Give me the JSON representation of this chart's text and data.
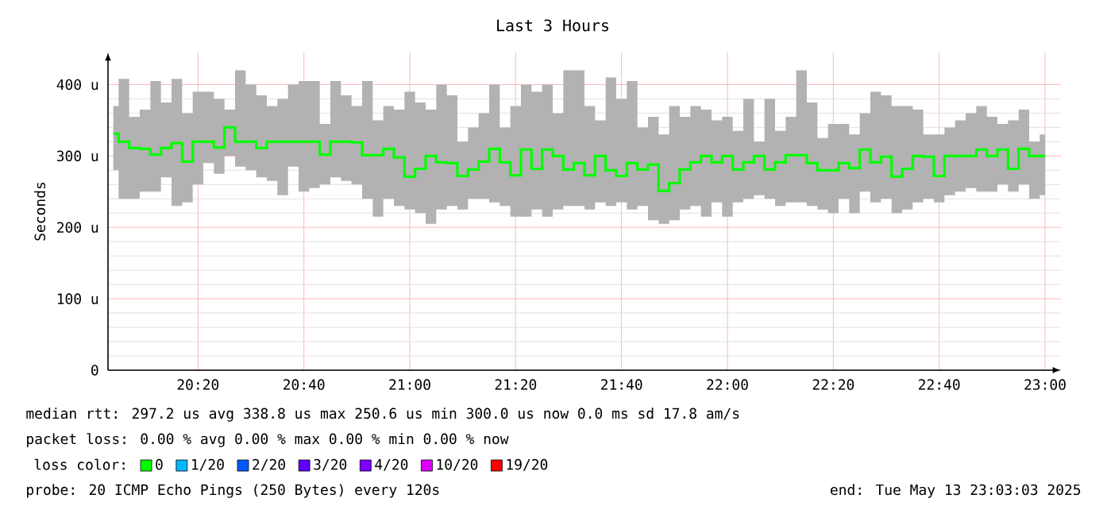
{
  "chart_data": {
    "type": "step",
    "title": "Last 3 Hours",
    "ylabel": "Seconds",
    "x": [
      20.0667,
      20.1,
      20.1333,
      20.1667,
      20.2,
      20.2333,
      20.2667,
      20.3,
      20.3333,
      20.3667,
      20.4,
      20.4333,
      20.4667,
      20.5,
      20.5333,
      20.5667,
      20.6,
      20.6333,
      20.6667,
      20.7,
      20.7333,
      20.7667,
      20.8,
      20.8333,
      20.8667,
      20.9,
      20.9333,
      20.9667,
      21.0,
      21.0333,
      21.0667,
      21.1,
      21.1333,
      21.1667,
      21.2,
      21.2333,
      21.2667,
      21.3,
      21.3333,
      21.3667,
      21.4,
      21.4333,
      21.4667,
      21.5,
      21.5333,
      21.5667,
      21.6,
      21.6333,
      21.6667,
      21.7,
      21.7333,
      21.7667,
      21.8,
      21.8333,
      21.8667,
      21.9,
      21.9333,
      21.9667,
      22.0,
      22.0333,
      22.0667,
      22.1,
      22.1333,
      22.1667,
      22.2,
      22.2333,
      22.2667,
      22.3,
      22.3333,
      22.3667,
      22.4,
      22.4333,
      22.4667,
      22.5,
      22.5333,
      22.5667,
      22.6,
      22.6333,
      22.6667,
      22.7,
      22.7333,
      22.7667,
      22.8,
      22.8333,
      22.8667,
      22.9,
      22.9333,
      22.9667,
      23.0
    ],
    "series": [
      {
        "name": "0",
        "color": "#00ff00",
        "values": [
          331,
          320,
          311,
          310,
          302,
          311,
          318,
          292,
          320,
          320,
          312,
          340,
          320,
          320,
          311,
          320,
          320,
          320,
          320,
          320,
          302,
          320,
          320,
          319,
          301,
          301,
          310,
          298,
          271,
          282,
          300,
          291,
          290,
          272,
          281,
          292,
          310,
          291,
          273,
          309,
          282,
          309,
          300,
          281,
          290,
          273,
          300,
          280,
          272,
          290,
          281,
          288,
          251,
          262,
          281,
          291,
          300,
          291,
          300,
          281,
          291,
          300,
          281,
          291,
          301,
          301,
          290,
          280,
          280,
          290,
          283,
          309,
          291,
          299,
          271,
          282,
          300,
          299,
          272,
          300,
          300,
          300,
          309,
          300,
          309,
          282,
          310,
          300,
          300
        ],
        "upper": [
          370,
          408,
          355,
          365,
          405,
          375,
          408,
          360,
          390,
          390,
          380,
          365,
          420,
          400,
          385,
          370,
          380,
          400,
          405,
          405,
          345,
          405,
          385,
          370,
          405,
          350,
          370,
          365,
          390,
          375,
          365,
          400,
          385,
          320,
          340,
          360,
          400,
          340,
          370,
          400,
          390,
          400,
          360,
          420,
          420,
          370,
          350,
          410,
          380,
          405,
          340,
          355,
          330,
          370,
          355,
          370,
          365,
          350,
          355,
          335,
          380,
          320,
          380,
          335,
          355,
          420,
          375,
          325,
          345,
          345,
          330,
          360,
          390,
          385,
          370,
          370,
          365,
          330,
          330,
          340,
          350,
          360,
          370,
          355,
          345,
          350,
          365,
          320,
          330
        ],
        "lower": [
          280,
          240,
          240,
          250,
          250,
          270,
          230,
          235,
          260,
          290,
          275,
          300,
          285,
          280,
          270,
          265,
          245,
          285,
          250,
          255,
          260,
          270,
          265,
          260,
          240,
          215,
          240,
          230,
          225,
          220,
          205,
          225,
          230,
          225,
          240,
          240,
          235,
          230,
          215,
          215,
          225,
          215,
          225,
          230,
          230,
          225,
          235,
          230,
          235,
          225,
          230,
          210,
          205,
          210,
          225,
          230,
          215,
          235,
          215,
          235,
          240,
          245,
          240,
          230,
          235,
          235,
          230,
          225,
          220,
          240,
          220,
          250,
          235,
          240,
          220,
          225,
          235,
          240,
          235,
          245,
          250,
          255,
          250,
          250,
          260,
          250,
          260,
          240,
          245
        ]
      },
      {
        "name": "1/20",
        "color": "#00b8ff",
        "values": [
          null,
          null,
          null,
          null,
          null,
          null,
          null,
          null,
          null,
          null,
          null,
          null,
          null,
          null,
          null,
          null,
          null,
          null,
          null,
          null,
          null,
          null,
          null,
          null,
          null,
          null,
          null,
          null,
          null,
          null,
          null,
          null,
          null,
          null,
          null,
          null,
          null,
          null,
          null,
          null,
          null,
          null,
          null,
          null,
          null,
          null,
          null,
          null,
          null,
          null,
          null,
          null,
          null,
          null,
          null,
          null,
          null,
          null,
          null,
          null,
          null,
          null,
          null,
          null,
          null,
          null,
          null,
          null,
          null,
          null,
          null,
          null,
          null,
          null,
          null,
          null,
          null,
          null,
          null,
          null,
          null,
          null,
          null,
          null,
          null,
          null,
          null,
          null,
          null
        ]
      },
      {
        "name": "2/20",
        "color": "#0059ff",
        "values": [
          null,
          null,
          null,
          null,
          null,
          null,
          null,
          null,
          null,
          null,
          null,
          null,
          null,
          null,
          null,
          null,
          null,
          null,
          null,
          null,
          null,
          null,
          null,
          null,
          null,
          null,
          null,
          null,
          null,
          null,
          null,
          null,
          null,
          null,
          null,
          null,
          null,
          null,
          null,
          null,
          null,
          null,
          null,
          null,
          null,
          null,
          null,
          null,
          null,
          null,
          null,
          null,
          null,
          null,
          null,
          null,
          null,
          null,
          null,
          null,
          null,
          null,
          null,
          null,
          null,
          null,
          null,
          null,
          null,
          null,
          null,
          null,
          null,
          null,
          null,
          null,
          null,
          null,
          null,
          null,
          null,
          null,
          null,
          null,
          null,
          null,
          null,
          null,
          null
        ]
      },
      {
        "name": "3/20",
        "color": "#5e00ff",
        "values": [
          null,
          null,
          null,
          null,
          null,
          null,
          null,
          null,
          null,
          null,
          null,
          null,
          null,
          null,
          null,
          null,
          null,
          null,
          null,
          null,
          null,
          null,
          null,
          null,
          null,
          null,
          null,
          null,
          null,
          null,
          null,
          null,
          null,
          null,
          null,
          null,
          null,
          null,
          null,
          null,
          null,
          null,
          null,
          null,
          null,
          null,
          null,
          null,
          null,
          null,
          null,
          null,
          null,
          null,
          null,
          null,
          null,
          null,
          null,
          null,
          null,
          null,
          null,
          null,
          null,
          null,
          null,
          null,
          null,
          null,
          null,
          null,
          null,
          null,
          null,
          null,
          null,
          null,
          null,
          null,
          null,
          null,
          null,
          null,
          null,
          null,
          null,
          null,
          null
        ]
      },
      {
        "name": "4/20",
        "color": "#7e00ff",
        "values": [
          null,
          null,
          null,
          null,
          null,
          null,
          null,
          null,
          null,
          null,
          null,
          null,
          null,
          null,
          null,
          null,
          null,
          null,
          null,
          null,
          null,
          null,
          null,
          null,
          null,
          null,
          null,
          null,
          null,
          null,
          null,
          null,
          null,
          null,
          null,
          null,
          null,
          null,
          null,
          null,
          null,
          null,
          null,
          null,
          null,
          null,
          null,
          null,
          null,
          null,
          null,
          null,
          null,
          null,
          null,
          null,
          null,
          null,
          null,
          null,
          null,
          null,
          null,
          null,
          null,
          null,
          null,
          null,
          null,
          null,
          null,
          null,
          null,
          null,
          null,
          null,
          null,
          null,
          null,
          null,
          null,
          null,
          null,
          null,
          null,
          null,
          null,
          null,
          null
        ]
      },
      {
        "name": "10/20",
        "color": "#dd00ff",
        "values": [
          null,
          null,
          null,
          null,
          null,
          null,
          null,
          null,
          null,
          null,
          null,
          null,
          null,
          null,
          null,
          null,
          null,
          null,
          null,
          null,
          null,
          null,
          null,
          null,
          null,
          null,
          null,
          null,
          null,
          null,
          null,
          null,
          null,
          null,
          null,
          null,
          null,
          null,
          null,
          null,
          null,
          null,
          null,
          null,
          null,
          null,
          null,
          null,
          null,
          null,
          null,
          null,
          null,
          null,
          null,
          null,
          null,
          null,
          null,
          null,
          null,
          null,
          null,
          null,
          null,
          null,
          null,
          null,
          null,
          null,
          null,
          null,
          null,
          null,
          null,
          null,
          null,
          null,
          null,
          null,
          null,
          null,
          null,
          null,
          null,
          null,
          null,
          null,
          null
        ]
      },
      {
        "name": "19/20",
        "color": "#ff0000",
        "values": [
          null,
          null,
          null,
          null,
          null,
          null,
          null,
          null,
          null,
          null,
          null,
          null,
          null,
          null,
          null,
          null,
          null,
          null,
          null,
          null,
          null,
          null,
          null,
          null,
          null,
          null,
          null,
          null,
          null,
          null,
          null,
          null,
          null,
          null,
          null,
          null,
          null,
          null,
          null,
          null,
          null,
          null,
          null,
          null,
          null,
          null,
          null,
          null,
          null,
          null,
          null,
          null,
          null,
          null,
          null,
          null,
          null,
          null,
          null,
          null,
          null,
          null,
          null,
          null,
          null,
          null,
          null,
          null,
          null,
          null,
          null,
          null,
          null,
          null,
          null,
          null,
          null,
          null,
          null,
          null,
          null,
          null,
          null,
          null,
          null,
          null,
          null,
          null,
          null
        ]
      }
    ],
    "legend": "bottom",
    "legend_title": "loss color:",
    "xlim": [
      20.05,
      23.05
    ],
    "xticks": [
      {
        "value": 20.3333,
        "label": "20:20"
      },
      {
        "value": 20.6667,
        "label": "20:40"
      },
      {
        "value": 21.0,
        "label": "21:00"
      },
      {
        "value": 21.3333,
        "label": "21:20"
      },
      {
        "value": 21.6667,
        "label": "21:40"
      },
      {
        "value": 22.0,
        "label": "22:00"
      },
      {
        "value": 22.3333,
        "label": "22:20"
      },
      {
        "value": 22.6667,
        "label": "22:40"
      },
      {
        "value": 23.0,
        "label": "23:00"
      }
    ],
    "ylim": [
      0,
      445
    ],
    "yticks": [
      0,
      {
        "value": 100,
        "label": "100 u"
      },
      {
        "value": 200,
        "label": "200 u"
      },
      {
        "value": 300,
        "label": "300 u"
      },
      {
        "value": 400,
        "label": "400 u"
      }
    ],
    "grid": true,
    "annotations": [
      "median rtt:  297.2 us avg  338.8 us max  250.6 us min  300.0 us now  0.0 ms sd  17.8  am/s",
      "packet loss: 0.00 % avg  0.00 % max  0.00 % min  0.00 % now",
      "probe:  20 ICMP Echo Pings (250 Bytes) every 120s",
      "end: Tue May 13 23:03:03 2025"
    ]
  }
}
